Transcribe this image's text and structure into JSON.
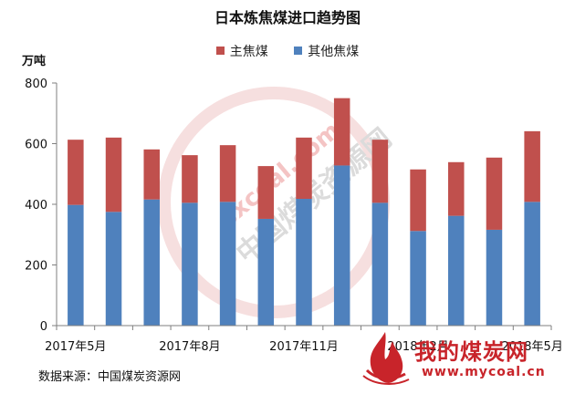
{
  "chart_data": {
    "type": "bar",
    "stacked": true,
    "title": "日本炼焦煤进口趋势图",
    "unit_label": "万吨",
    "categories": [
      "2017年5月",
      "2017年6月",
      "2017年7月",
      "2017年8月",
      "2017年9月",
      "2017年10月",
      "2017年11月",
      "2017年12月",
      "2018年1月",
      "2018年2月",
      "2018年3月",
      "2018年4月",
      "2018年5月"
    ],
    "tick_labels": [
      "2017年5月",
      "2017年8月",
      "2017年11月",
      "2018年2月",
      "2018年5月"
    ],
    "tick_label_indices": [
      0,
      3,
      6,
      9,
      12
    ],
    "series": [
      {
        "name": "其他焦煤",
        "color": "#4f81bd",
        "values": [
          398,
          375,
          416,
          405,
          408,
          352,
          418,
          528,
          405,
          312,
          362,
          316,
          408
        ]
      },
      {
        "name": "主焦煤",
        "color": "#c0504d",
        "values": [
          215,
          245,
          165,
          157,
          187,
          174,
          202,
          222,
          208,
          203,
          177,
          238,
          233
        ]
      }
    ],
    "legend_order": [
      1,
      0
    ],
    "legend_position": "top",
    "yticks": [
      0,
      200,
      400,
      600,
      800
    ],
    "ylim": [
      0,
      800
    ],
    "grid": false
  },
  "source_text": "数据来源：中国煤炭资源网",
  "watermark": {
    "site_name": "我的煤炭网",
    "url": "www.mycoal.cn",
    "stamp_url": "sxcoal.com",
    "stamp_text": "中国煤炭资源网"
  },
  "colors": {
    "axis": "#7f7f7f",
    "brand_red": "#c8242a"
  }
}
